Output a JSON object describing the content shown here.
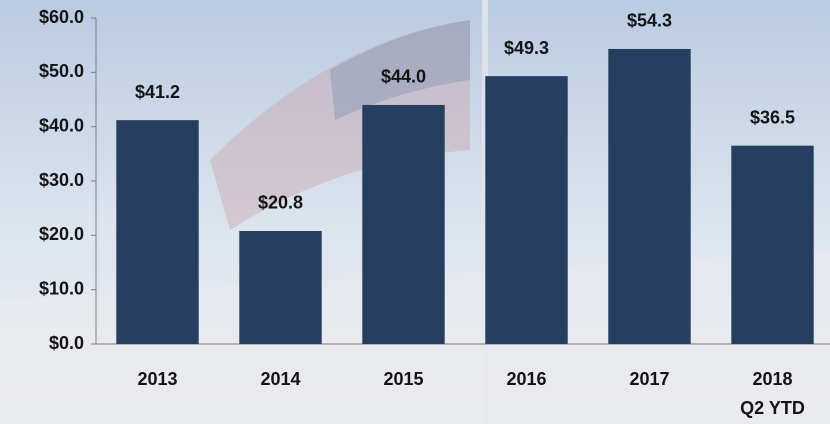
{
  "chart_data": {
    "type": "bar",
    "categories": [
      "2013",
      "2014",
      "2015",
      "2016",
      "2017",
      "2018\nQ2 YTD"
    ],
    "values": [
      41.2,
      20.8,
      44.0,
      49.3,
      54.3,
      36.5
    ],
    "value_labels": [
      "$41.2",
      "$20.8",
      "$44.0",
      "$49.3",
      "$54.3",
      "$36.5"
    ],
    "color": "#263f60",
    "ylim": [
      0,
      60
    ],
    "yticks": [
      {
        "value": 0,
        "label": "$0.0"
      },
      {
        "value": 10,
        "label": "$10.0"
      },
      {
        "value": 20,
        "label": "$20.0"
      },
      {
        "value": 30,
        "label": "$30.0"
      },
      {
        "value": 40,
        "label": "$40.0"
      },
      {
        "value": 50,
        "label": "$50.0"
      },
      {
        "value": 60,
        "label": "$60.0"
      }
    ]
  }
}
